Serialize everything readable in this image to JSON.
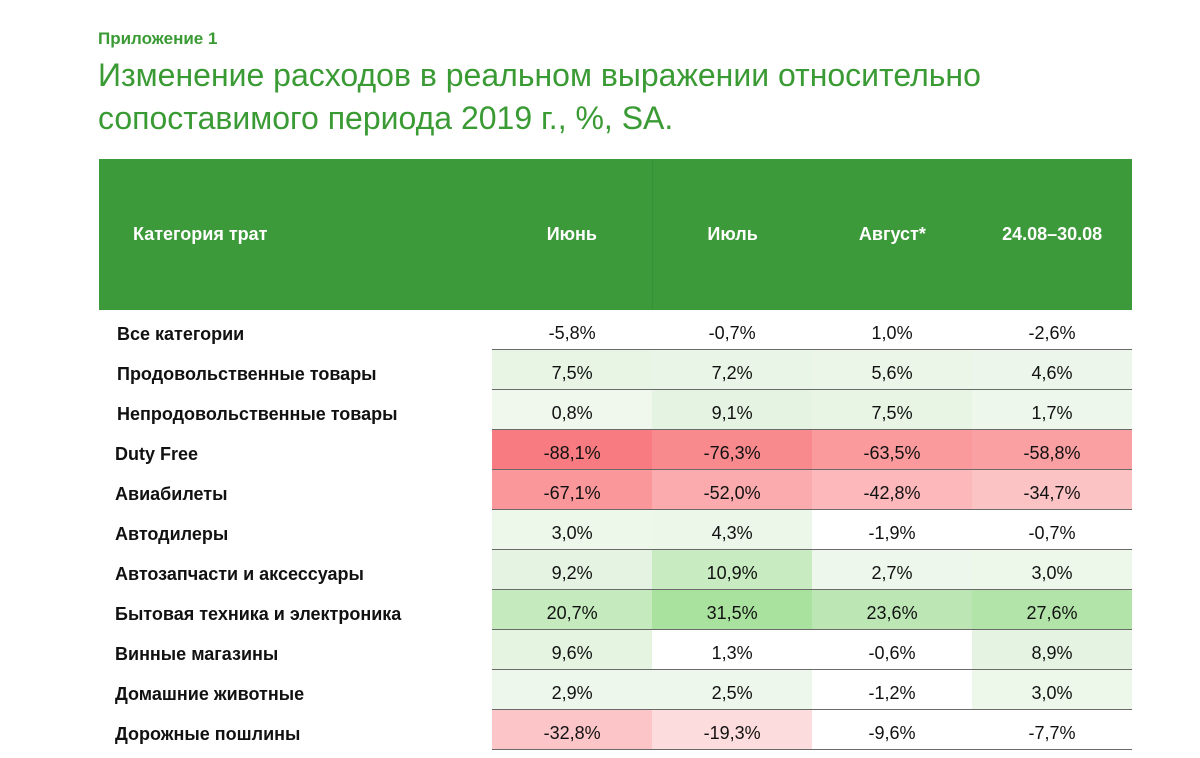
{
  "appendix_label": "Приложение 1",
  "title": "Изменение расходов в реальном выражении относительно сопоставимого периода 2019 г., %, SA.",
  "table": {
    "headers": [
      "Категория трат",
      "Июнь",
      "Июль",
      "Август*",
      "24.08–30.08"
    ],
    "rows": [
      {
        "label": "Все категории",
        "values": [
          "-5,8%",
          "-0,7%",
          "1,0%",
          "-2,6%"
        ],
        "colors": [
          "#ffffff",
          "#ffffff",
          "#ffffff",
          "#ffffff"
        ]
      },
      {
        "label": "Продовольственные товары",
        "values": [
          "7,5%",
          "7,2%",
          "5,6%",
          "4,6%"
        ],
        "colors": [
          "#e8f5e5",
          "#e9f5e6",
          "#ebf6e8",
          "#edf6ea"
        ]
      },
      {
        "label": "Непродовольственные товары",
        "values": [
          "0,8%",
          "9,1%",
          "7,5%",
          "1,7%"
        ],
        "colors": [
          "#f0f8ee",
          "#e5f4e2",
          "#e8f5e5",
          "#eef7ec"
        ]
      },
      {
        "label": "Duty Free",
        "values": [
          "-88,1%",
          "-76,3%",
          "-63,5%",
          "-58,8%"
        ],
        "colors": [
          "#f77b80",
          "#f8898d",
          "#fa9a9d",
          "#fa9fa2"
        ]
      },
      {
        "label": "Авиабилеты",
        "values": [
          "-67,1%",
          "-52,0%",
          "-42,8%",
          "-34,7%"
        ],
        "colors": [
          "#f9979a",
          "#fbabae",
          "#fcb8ba",
          "#fcc3c5"
        ]
      },
      {
        "label": "Автодилеры",
        "values": [
          "3,0%",
          "4,3%",
          "-1,9%",
          "-0,7%"
        ],
        "colors": [
          "#edf7ea",
          "#ecf6e9",
          "#ffffff",
          "#ffffff"
        ]
      },
      {
        "label": "Автозапчасти и аксессуары",
        "values": [
          "9,2%",
          "10,9%",
          "2,7%",
          "3,0%"
        ],
        "colors": [
          "#e5f4e2",
          "#c8ebc2",
          "#eef7eb",
          "#edf7ea"
        ]
      },
      {
        "label": "Бытовая техника и электроника",
        "values": [
          "20,7%",
          "31,5%",
          "23,6%",
          "27,6%"
        ],
        "colors": [
          "#c4eabd",
          "#a9e29f",
          "#bce7b4",
          "#b2e4a9"
        ]
      },
      {
        "label": "Винные магазины",
        "values": [
          "9,6%",
          "1,3%",
          "-0,6%",
          "8,9%"
        ],
        "colors": [
          "#e4f4e1",
          "#ffffff",
          "#ffffff",
          "#e5f4e2"
        ]
      },
      {
        "label": "Домашние животные",
        "values": [
          "2,9%",
          "2,5%",
          "-1,2%",
          "3,0%"
        ],
        "colors": [
          "#eef7eb",
          "#eef7eb",
          "#ffffff",
          "#edf7ea"
        ]
      },
      {
        "label": "Дорожные пошлины",
        "values": [
          "-32,8%",
          "-19,3%",
          "-9,6%",
          "-7,7%"
        ],
        "colors": [
          "#fcc5c7",
          "#fddcdd",
          "#ffffff",
          "#ffffff"
        ]
      }
    ]
  }
}
